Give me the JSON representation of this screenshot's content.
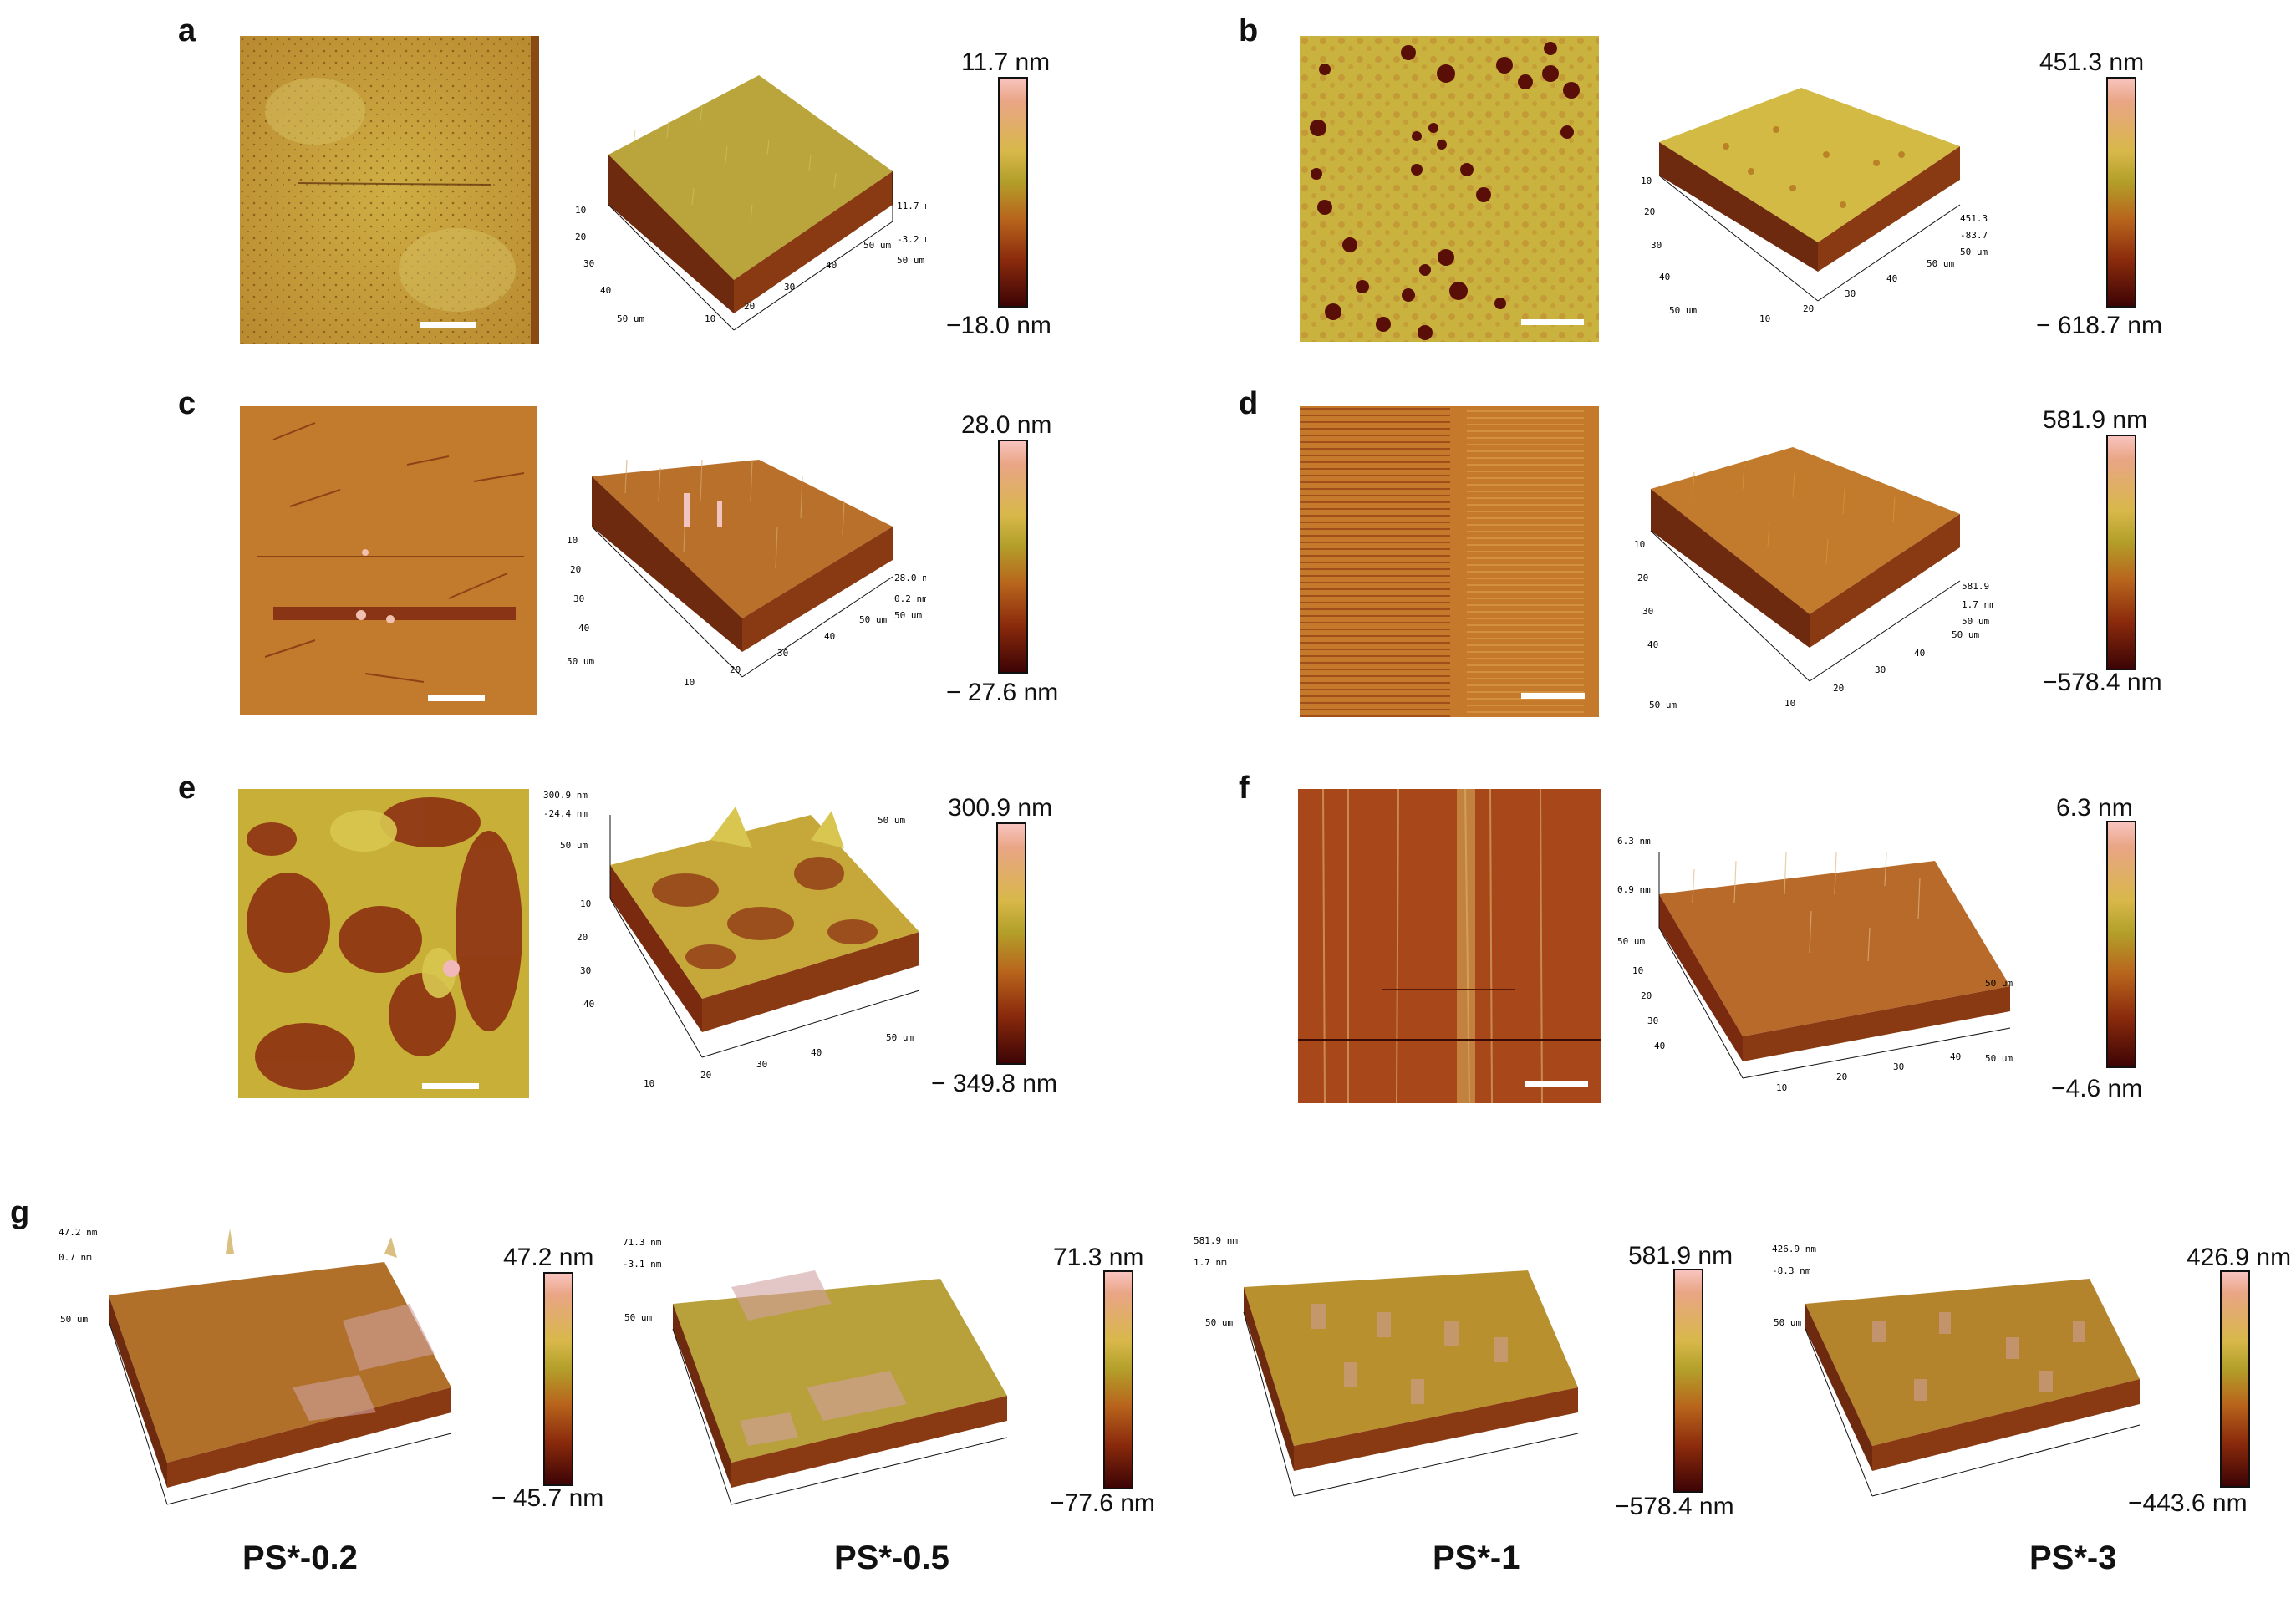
{
  "panels": [
    {
      "id": "a",
      "letter": "a",
      "max": "11.7 nm",
      "min": "−18.0 nm",
      "iso": {
        "ticks_left": [
          "10",
          "20",
          "30",
          "40",
          "50 um"
        ],
        "ticks_bottom": [
          "10",
          "20",
          "30",
          "40",
          "50 um"
        ],
        "side": [
          "11.7 nm",
          "-3.2 nm",
          "50 um"
        ]
      },
      "colors": {
        "base": "#c7a43a",
        "dark": "#8f5a1c",
        "light": "#d9c26a"
      }
    },
    {
      "id": "b",
      "letter": "b",
      "max": "451.3 nm",
      "min": "− 618.7 nm",
      "iso": {
        "ticks_left": [
          "10",
          "20",
          "30",
          "40",
          "50 um"
        ],
        "ticks_bottom": [
          "10",
          "20",
          "30",
          "40",
          "50 um"
        ],
        "side": [
          "451.3 nm",
          "-83.7 nm",
          "50 um"
        ]
      },
      "colors": {
        "base": "#c9b23e",
        "dark": "#7a1a0a",
        "light": "#e0cf60"
      }
    },
    {
      "id": "c",
      "letter": "c",
      "max": "28.0 nm",
      "min": "− 27.6 nm",
      "iso": {
        "ticks_left": [
          "10",
          "20",
          "30",
          "40",
          "50 um"
        ],
        "ticks_bottom": [
          "10",
          "20",
          "30",
          "40",
          "50 um"
        ],
        "side": [
          "28.0 nm",
          "0.2 nm",
          "50 um"
        ]
      },
      "colors": {
        "base": "#c27a2c",
        "dark": "#7a2a0e",
        "light": "#d89a4a"
      }
    },
    {
      "id": "d",
      "letter": "d",
      "max": "581.9 nm",
      "min": "−578.4 nm",
      "iso": {
        "ticks_left": [
          "10",
          "20",
          "30",
          "40",
          "50 um"
        ],
        "ticks_bottom": [
          "10",
          "20",
          "30",
          "40",
          "50 um"
        ],
        "side": [
          "581.9 nm",
          "1.7 nm",
          "50 um"
        ]
      },
      "colors": {
        "base": "#c2782a",
        "dark": "#8a3410",
        "light": "#d99a3c"
      }
    },
    {
      "id": "e",
      "letter": "e",
      "max": "300.9 nm",
      "min": "− 349.8 nm",
      "iso": {
        "ticks_left": [
          "10",
          "20",
          "30",
          "40",
          "50 um"
        ],
        "ticks_bottom": [
          "10",
          "20",
          "30",
          "40",
          "50 um"
        ],
        "side": [
          "300.9 nm",
          "-24.4 nm",
          "50 um"
        ]
      },
      "colors": {
        "base": "#c9b23a",
        "dark": "#8a2a10",
        "light": "#d8c650"
      }
    },
    {
      "id": "f",
      "letter": "f",
      "max": "6.3 nm",
      "min": "−4.6 nm",
      "iso": {
        "ticks_left": [
          "10",
          "20",
          "30",
          "40",
          "50 um"
        ],
        "ticks_bottom": [
          "10",
          "20",
          "30",
          "40",
          "50 um"
        ],
        "side": [
          "6.3 nm",
          "0.9 nm",
          "50 um"
        ]
      },
      "colors": {
        "base": "#a8481a",
        "dark": "#6a1a08",
        "light": "#d6b066"
      }
    }
  ],
  "g": {
    "letter": "g",
    "items": [
      {
        "caption": "PS*-0.2",
        "max": "47.2 nm",
        "min": "− 45.7 nm",
        "side": [
          "47.2 nm",
          "0.7 nm",
          "50 um"
        ]
      },
      {
        "caption": "PS*-0.5",
        "max": "71.3 nm",
        "min": "−77.6 nm",
        "side": [
          "71.3 nm",
          "-3.1 nm",
          "50 um"
        ]
      },
      {
        "caption": "PS*-1",
        "max": "581.9 nm",
        "min": "−578.4 nm",
        "side": [
          "581.9 nm",
          "1.7 nm",
          "50 um"
        ]
      },
      {
        "caption": "PS*-3",
        "max": "426.9 nm",
        "min": "−443.6 nm",
        "side": [
          "426.9 nm",
          "-8.3 nm",
          "50 um"
        ]
      }
    ]
  }
}
